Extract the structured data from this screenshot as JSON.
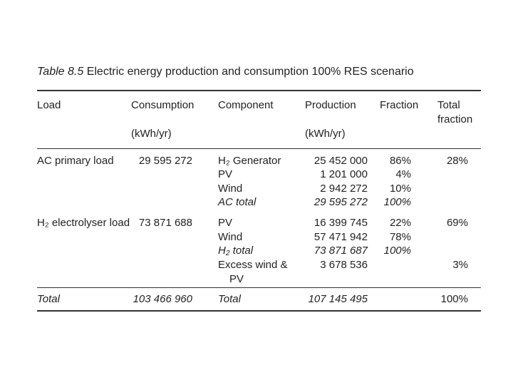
{
  "title": {
    "label": "Table 8.5",
    "text": "Electric energy production and consumption 100% RES scenario"
  },
  "header": {
    "columns": [
      "Load",
      "Consumption",
      "Component",
      "Production",
      "Fraction",
      "Total fraction"
    ],
    "units": [
      "(kWh/yr)",
      "(kWh/yr)"
    ]
  },
  "table": {
    "groups": [
      {
        "load": "AC primary load",
        "consumption": "29 595 272",
        "components": [
          {
            "name": "H₂ Generator",
            "production": "25 452 000",
            "fraction": "86%"
          },
          {
            "name": "PV",
            "production": "1 201 000",
            "fraction": "4%"
          },
          {
            "name": "Wind",
            "production": "2 942 272",
            "fraction": "10%"
          },
          {
            "name": "AC total",
            "production": "29 595 272",
            "fraction": "100%"
          }
        ],
        "total_fraction": "28%"
      },
      {
        "load": "H₂ electrolyser load",
        "consumption": "73 871 688",
        "components": [
          {
            "name": "PV",
            "production": "16 399 745",
            "fraction": "22%"
          },
          {
            "name": "Wind",
            "production": "57 471 942",
            "fraction": "78%"
          },
          {
            "name": "H₂ total",
            "production": "73 871 687",
            "fraction": "100%"
          }
        ],
        "total_fraction": "69%"
      },
      {
        "components": [
          {
            "name": "Excess wind & PV",
            "production": "3 678 536"
          }
        ],
        "total_fraction": "3%"
      }
    ],
    "total": {
      "label": "Total",
      "consumption": "103 466 960",
      "component": "Total",
      "production": "107 145 495",
      "total_fraction": "100%"
    }
  }
}
